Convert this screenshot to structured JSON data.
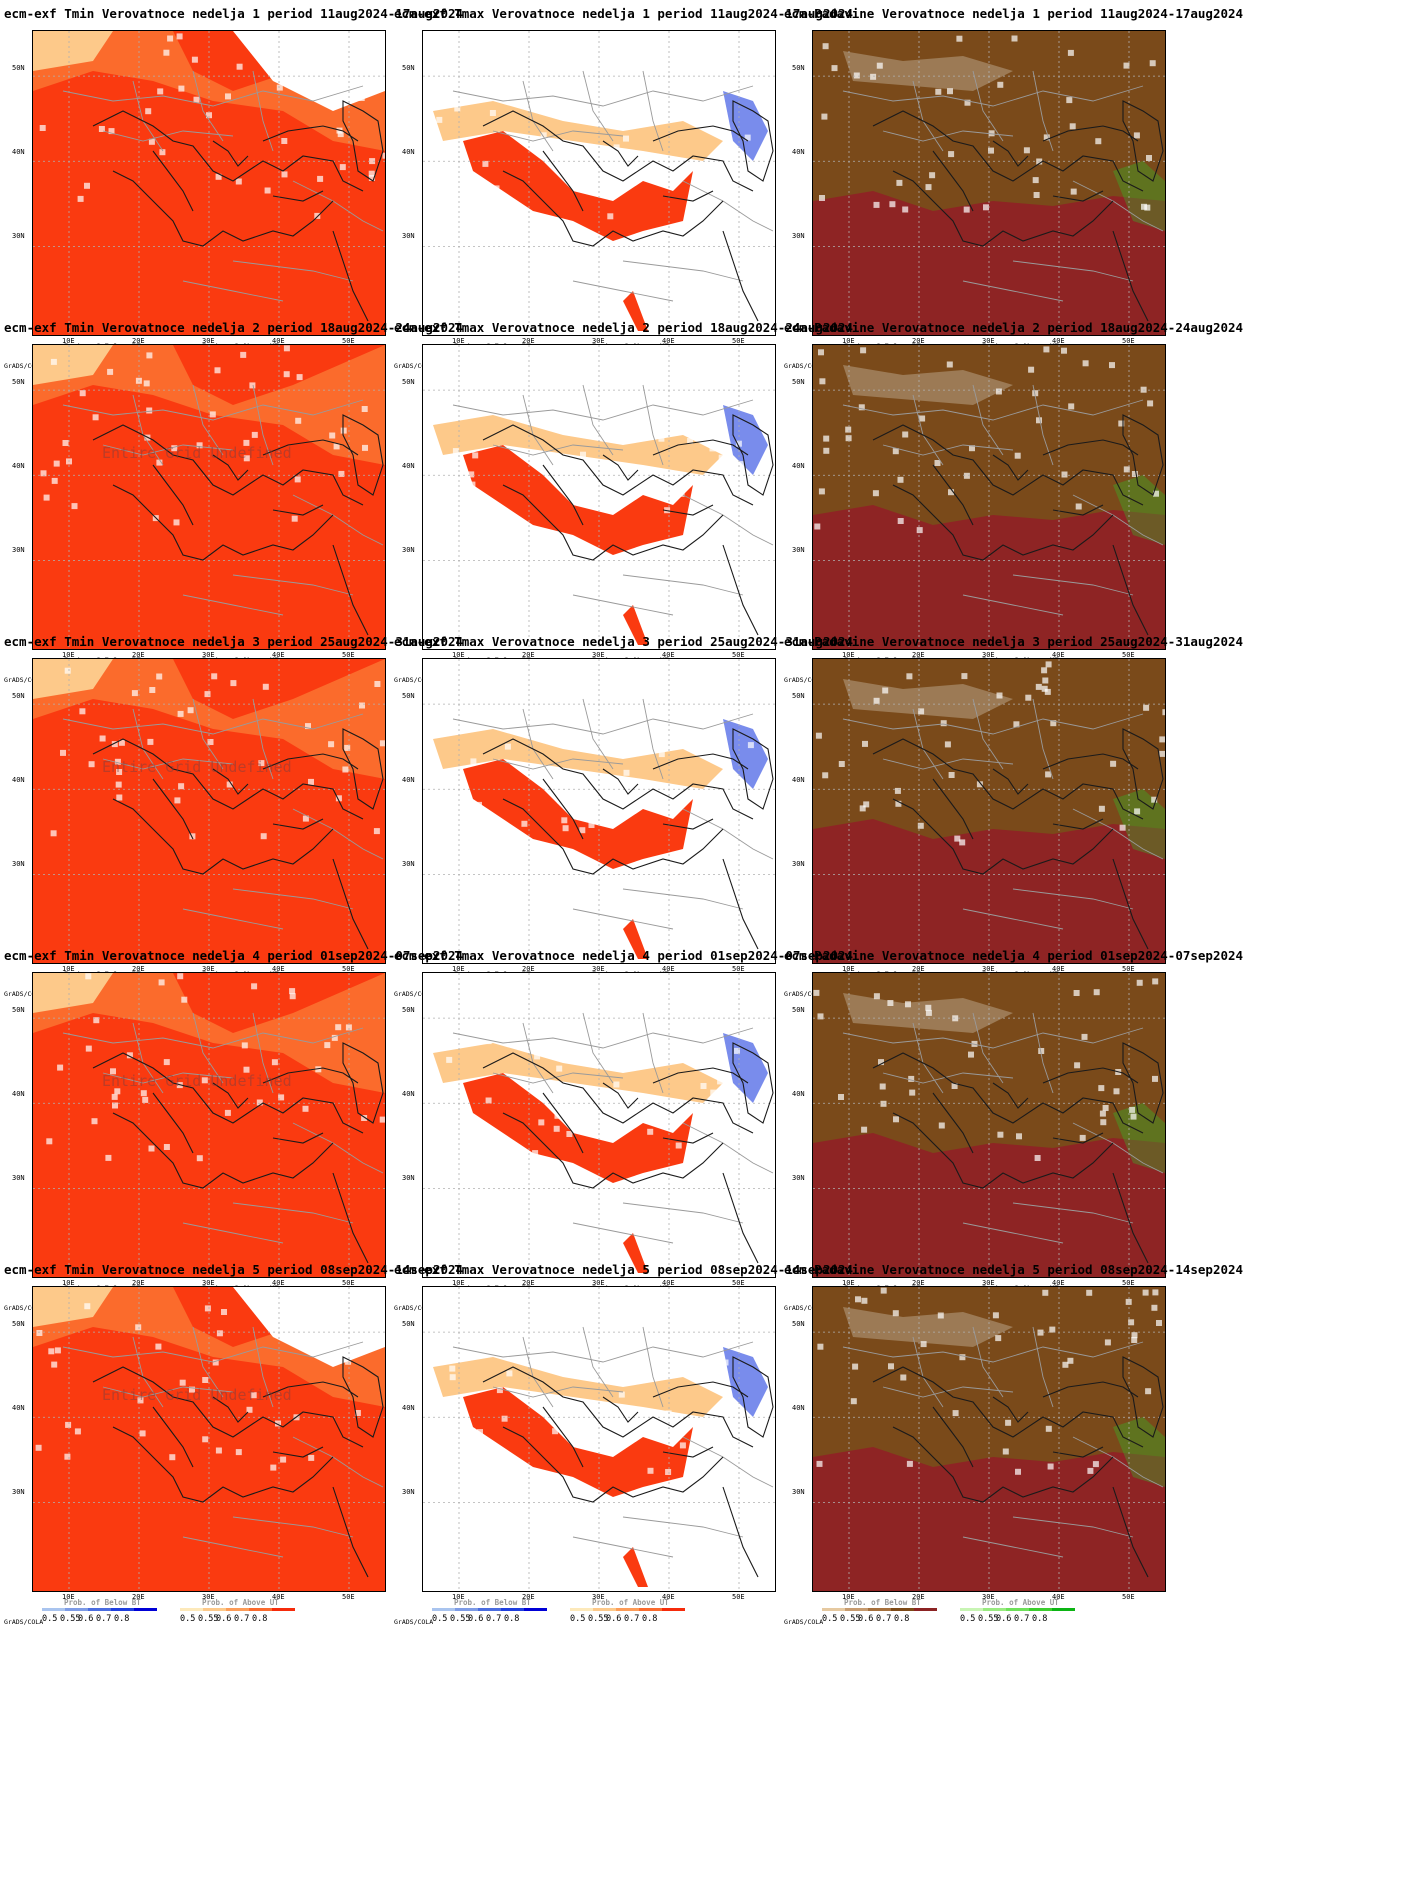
{
  "axes": {
    "y_labels": [
      "50N",
      "40N",
      "30N"
    ],
    "x_labels": [
      "10E",
      "20E",
      "30E",
      "40E",
      "50E"
    ]
  },
  "colorbar": {
    "ticks": [
      "0.5",
      "0.55",
      "0.6",
      "0.7",
      "0.8"
    ],
    "grads_label": "GrADS/COLA"
  },
  "undefined_note": "Entire Grid Undefined",
  "variables": [
    {
      "key": "tmin",
      "bar_left": "Prob. of Below BT",
      "bar_right": "Prob. of Above UT",
      "colors_left": [
        "#a9c4ef",
        "#7d9be6",
        "#4a6ce0",
        "#1f3fdf",
        "#0000d6"
      ],
      "colors_right": [
        "#fde9ba",
        "#fdc98a",
        "#fc9c58",
        "#fa6a2e",
        "#f52b0b"
      ],
      "fill_colors": {
        "primary": "#fa3a10",
        "secondary": "#fb6b2c",
        "tertiary": "#fdc98a",
        "minor": "#5a7be6"
      }
    },
    {
      "key": "tmax",
      "bar_left": "Prob. of Below BT",
      "bar_right": "Prob. of Above UT",
      "colors_left": [
        "#a9c4ef",
        "#7d9be6",
        "#4a6ce0",
        "#1f3fdf",
        "#0000d6"
      ],
      "colors_right": [
        "#fde9ba",
        "#fdc98a",
        "#fc9c58",
        "#fa6a2e",
        "#f52b0b"
      ],
      "fill_colors": {
        "primary": "#fa3a10",
        "secondary": "#fdc98a",
        "tertiary": "#fdecc0",
        "minor": "#1f3fdf"
      }
    },
    {
      "key": "pad",
      "bar_left": "Prob. of Below BT",
      "bar_right": "Prob. of Above UT",
      "colors_left": [
        "#e6c9a0",
        "#c79b6f",
        "#a6703c",
        "#7d4a17",
        "#8c2323"
      ],
      "colors_right": [
        "#c8f5b4",
        "#99eb80",
        "#6ee05a",
        "#3ccd2e",
        "#0cb414"
      ],
      "fill_colors": {
        "primary": "#8e2424",
        "secondary": "#7a4a1a",
        "tertiary": "#9c7a55",
        "minor": "#2fbf2a"
      }
    }
  ],
  "panels": [
    {
      "title": "ecm-exf Tmin Verovatnoce nedelja 1 period 11aug2024-17aug2024",
      "var": 0,
      "undef": false
    },
    {
      "title": "ecm-exf Tmax Verovatnoce nedelja 1 period 11aug2024-17aug2024",
      "var": 1,
      "undef": false
    },
    {
      "title": "ecm-Padavine Verovatnoce nedelja 1 period 11aug2024-17aug2024",
      "var": 2,
      "undef": false
    },
    {
      "title": "ecm-exf Tmin Verovatnoce nedelja 2 period 18aug2024-24aug2024",
      "var": 0,
      "undef": true
    },
    {
      "title": "ecm-exf Tmax Verovatnoce nedelja 2 period 18aug2024-24aug2024",
      "var": 1,
      "undef": false
    },
    {
      "title": "ecm-Padavine Verovatnoce nedelja 2 period 18aug2024-24aug2024",
      "var": 2,
      "undef": false
    },
    {
      "title": "ecm-exf Tmin Verovatnoce nedelja 3 period 25aug2024-31aug2024",
      "var": 0,
      "undef": true
    },
    {
      "title": "ecm-exf Tmax Verovatnoce nedelja 3 period 25aug2024-31aug2024",
      "var": 1,
      "undef": false
    },
    {
      "title": "ecm-Padavine Verovatnoce nedelja 3 period 25aug2024-31aug2024",
      "var": 2,
      "undef": false
    },
    {
      "title": "ecm-exf Tmin Verovatnoce nedelja 4 period 01sep2024-07sep2024",
      "var": 0,
      "undef": true
    },
    {
      "title": "ecm-exf Tmax Verovatnoce nedelja 4 period 01sep2024-07sep2024",
      "var": 1,
      "undef": false
    },
    {
      "title": "ecm-Padavine Verovatnoce nedelja 4 period 01sep2024-07sep2024",
      "var": 2,
      "undef": false
    },
    {
      "title": "ecm-exf Tmin Verovatnoce nedelja 5 period 08sep2024-14sep2024",
      "var": 0,
      "undef": true
    },
    {
      "title": "ecm-exf Tmax Verovatnoce nedelja 5 period 08sep2024-14sep2024",
      "var": 1,
      "undef": false
    },
    {
      "title": "ecm-Padavine Verovatnoce nedelja 5 period 08sep2024-14sep2024",
      "var": 2,
      "undef": false
    }
  ]
}
